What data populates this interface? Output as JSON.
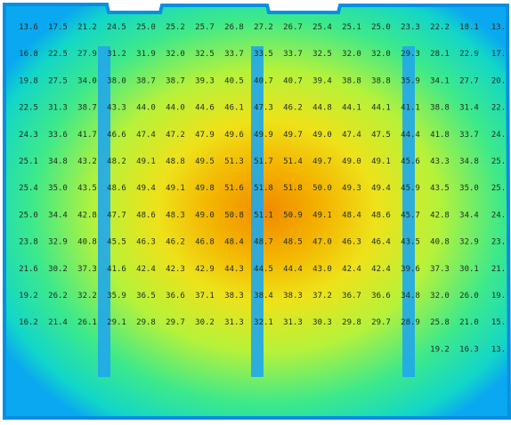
{
  "chart_data": {
    "type": "heatmap",
    "title": "",
    "xlabel": "",
    "ylabel": "",
    "value_range": [
      13.6,
      51.8
    ],
    "colorscale": [
      "#0aa8f0",
      "#12e7b0",
      "#b6f23a",
      "#f4d000",
      "#f08a00"
    ],
    "rows": [
      [
        "13.6",
        "17.5",
        "21.2",
        "24.5",
        "25.0",
        "25.2",
        "25.7",
        "26.8",
        "27.2",
        "26.7",
        "25.4",
        "25.1",
        "25.0",
        "23.3",
        "22.2",
        "18.1",
        "13."
      ],
      [
        "16.8",
        "22.5",
        "27.9",
        "31.2",
        "31.9",
        "32.0",
        "32.5",
        "33.7",
        "33.5",
        "33.7",
        "32.5",
        "32.0",
        "32.0",
        "29.3",
        "28.1",
        "22.9",
        "17."
      ],
      [
        "19.8",
        "27.5",
        "34.0",
        "38.0",
        "38.7",
        "38.7",
        "39.3",
        "40.5",
        "40.7",
        "40.7",
        "39.4",
        "38.8",
        "38.8",
        "35.9",
        "34.1",
        "27.7",
        "20."
      ],
      [
        "22.5",
        "31.3",
        "38.7",
        "43.3",
        "44.0",
        "44.0",
        "44.6",
        "46.1",
        "47.3",
        "46.2",
        "44.8",
        "44.1",
        "44.1",
        "41.1",
        "38.8",
        "31.4",
        "22."
      ],
      [
        "24.3",
        "33.6",
        "41.7",
        "46.6",
        "47.4",
        "47.2",
        "47.9",
        "49.6",
        "49.9",
        "49.7",
        "49.0",
        "47.4",
        "47.5",
        "44.4",
        "41.8",
        "33.7",
        "24."
      ],
      [
        "25.1",
        "34.8",
        "43.2",
        "48.2",
        "49.1",
        "48.8",
        "49.5",
        "51.3",
        "51.7",
        "51.4",
        "49.7",
        "49.0",
        "49.1",
        "45.6",
        "43.3",
        "34.8",
        "25."
      ],
      [
        "25.4",
        "35.0",
        "43.5",
        "48.6",
        "49.4",
        "49.1",
        "49.8",
        "51.6",
        "51.8",
        "51.8",
        "50.0",
        "49.3",
        "49.4",
        "45.9",
        "43.5",
        "35.0",
        "25."
      ],
      [
        "25.0",
        "34.4",
        "42.8",
        "47.7",
        "48.6",
        "48.3",
        "49.0",
        "50.8",
        "51.1",
        "50.9",
        "49.1",
        "48.4",
        "48.6",
        "45.7",
        "42.8",
        "34.4",
        "24."
      ],
      [
        "23.8",
        "32.9",
        "40.8",
        "45.5",
        "46.3",
        "46.2",
        "46.8",
        "48.4",
        "48.7",
        "48.5",
        "47.0",
        "46.3",
        "46.4",
        "43.5",
        "40.8",
        "32.9",
        "23."
      ],
      [
        "21.6",
        "30.2",
        "37.3",
        "41.6",
        "42.4",
        "42.3",
        "42.9",
        "44.3",
        "44.5",
        "44.4",
        "43.0",
        "42.4",
        "42.4",
        "39.6",
        "37.3",
        "30.1",
        "21."
      ],
      [
        "19.2",
        "26.2",
        "32.2",
        "35.9",
        "36.5",
        "36.6",
        "37.1",
        "38.3",
        "38.4",
        "38.3",
        "37.2",
        "36.7",
        "36.6",
        "34.8",
        "32.0",
        "26.0",
        "19."
      ],
      [
        "16.2",
        "21.4",
        "26.1",
        "29.1",
        "29.8",
        "29.7",
        "30.2",
        "31.3",
        "32.1",
        "31.3",
        "30.3",
        "29.8",
        "29.7",
        "28.9",
        "25.8",
        "21.0",
        "15."
      ],
      [
        "",
        "",
        "",
        "",
        "",
        "",
        "",
        "",
        "",
        "",
        "",
        "",
        "",
        "",
        "19.2",
        "16.3",
        "13."
      ]
    ]
  }
}
